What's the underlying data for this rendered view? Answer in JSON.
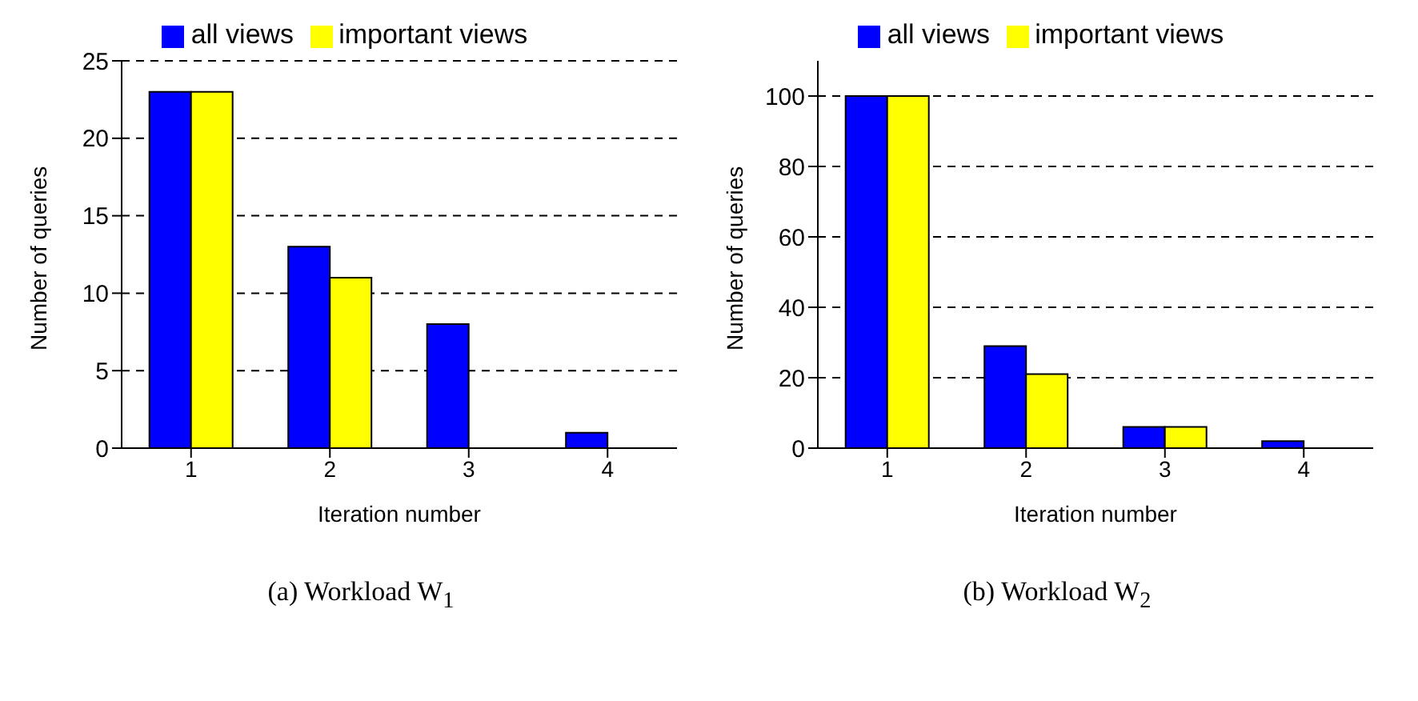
{
  "chart_data": [
    {
      "type": "bar",
      "title": "(a)  Workload W$_{1}$",
      "xlabel": "Iteration number",
      "ylabel": "Number of queries",
      "categories": [
        "1",
        "2",
        "3",
        "4"
      ],
      "series": [
        {
          "name": "all views",
          "color": "#0000ff",
          "values": [
            23,
            13,
            8,
            1
          ]
        },
        {
          "name": "important views",
          "color": "#ffff00",
          "values": [
            23,
            11,
            0,
            0
          ]
        }
      ],
      "ylim": [
        0,
        25
      ],
      "yticks": [
        0,
        5,
        10,
        15,
        20,
        25
      ],
      "grid": "y",
      "legend": "top"
    },
    {
      "type": "bar",
      "title": "(b)  Workload W$_{2}$",
      "xlabel": "Iteration number",
      "ylabel": "Number of queries",
      "categories": [
        "1",
        "2",
        "3",
        "4"
      ],
      "series": [
        {
          "name": "all views",
          "color": "#0000ff",
          "values": [
            100,
            29,
            6,
            2
          ]
        },
        {
          "name": "important views",
          "color": "#ffff00",
          "values": [
            100,
            21,
            6,
            0
          ]
        }
      ],
      "ylim": [
        0,
        110
      ],
      "yticks": [
        0,
        20,
        40,
        60,
        80,
        100
      ],
      "grid": "y",
      "legend": "top"
    }
  ]
}
